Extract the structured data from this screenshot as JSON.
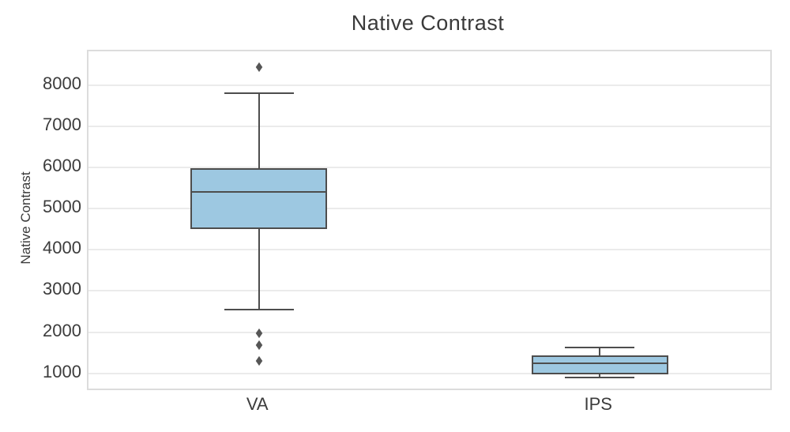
{
  "chart_data": {
    "type": "box",
    "title": "Native Contrast",
    "ylabel": "Native Contrast",
    "xlabel": "",
    "categories": [
      "VA",
      "IPS"
    ],
    "yticks": [
      1000,
      2000,
      3000,
      4000,
      5000,
      6000,
      7000,
      8000
    ],
    "ylim": [
      630,
      8820
    ],
    "grid": "horizontal-only",
    "legend": "none",
    "colors": {
      "box_fill": "#9dc8e1",
      "box_edge": "#4d4d4d",
      "whisker": "#4d4d4d",
      "outlier": "#565656",
      "gridline": "#ebebeb",
      "spine": "#dcdcdc",
      "text": "#3c3c3c"
    },
    "boxes": [
      {
        "label": "VA",
        "whisker_low": 2550,
        "q1": 4500,
        "median": 5400,
        "q3": 5980,
        "whisker_high": 7800,
        "outliers": [
          8430,
          1980,
          1690,
          1310
        ]
      },
      {
        "label": "IPS",
        "whisker_low": 900,
        "q1": 980,
        "median": 1240,
        "q3": 1430,
        "whisker_high": 1630,
        "outliers": []
      }
    ]
  }
}
